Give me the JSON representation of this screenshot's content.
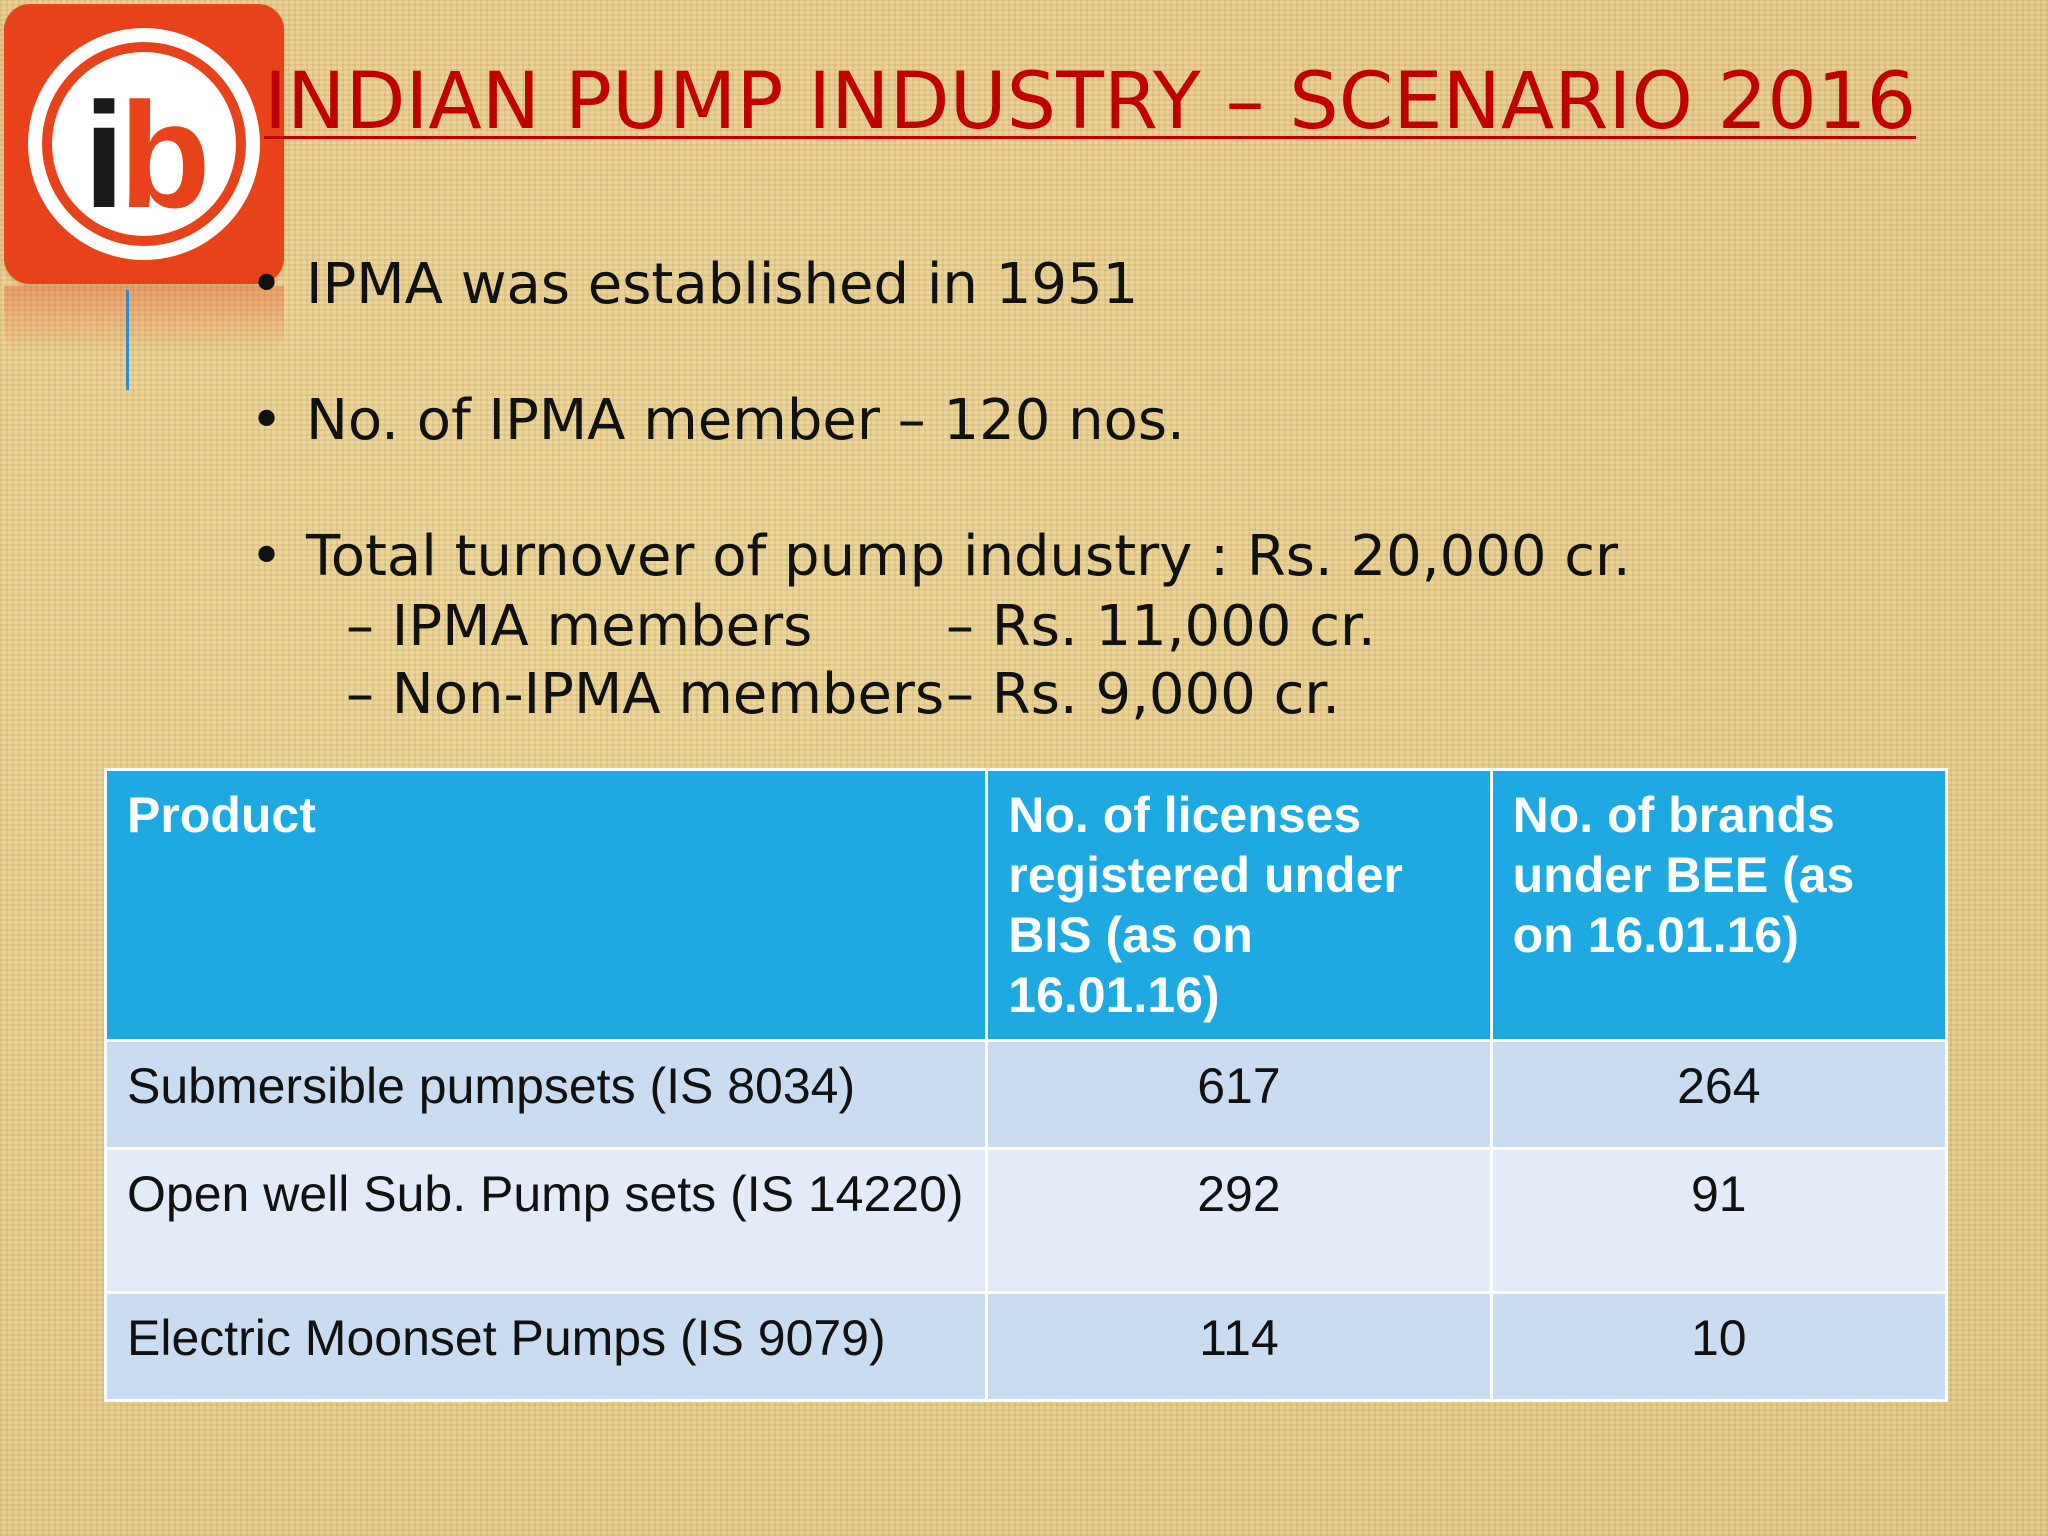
{
  "slide": {
    "title": "INDIAN PUMP INDUSTRY – SCENARIO 2016",
    "logo_letters": {
      "i": "i",
      "b": "b"
    },
    "bullet_symbol": "•",
    "bullets": [
      "IPMA was established in 1951",
      "No. of IPMA member – 120 nos.",
      "Total turnover of pump industry : Rs. 20,000 cr."
    ],
    "sub_bullets": [
      {
        "label": "– IPMA members",
        "value": "– Rs. 11,000 cr."
      },
      {
        "label": "– Non-IPMA members",
        "value": "– Rs.  9,000 cr."
      }
    ]
  },
  "table": {
    "headers": [
      "Product",
      "No. of licenses registered under BIS (as on 16.01.16)",
      "No. of brands under BEE (as on 16.01.16)"
    ],
    "rows": [
      {
        "product": "Submersible pumpsets (IS 8034)",
        "licenses": "617",
        "brands": "264"
      },
      {
        "product": "Open well Sub. Pump sets (IS 14220)",
        "licenses": "292",
        "brands": "91"
      },
      {
        "product": "Electric Moonset Pumps (IS 9079)",
        "licenses": "114",
        "brands": "10"
      }
    ]
  },
  "colors": {
    "title": "#c00000",
    "logo": "#e8421a",
    "header_bg": "#1ea9e3",
    "row_dark": "#c9dcf2",
    "row_light": "#e2ebf7"
  }
}
